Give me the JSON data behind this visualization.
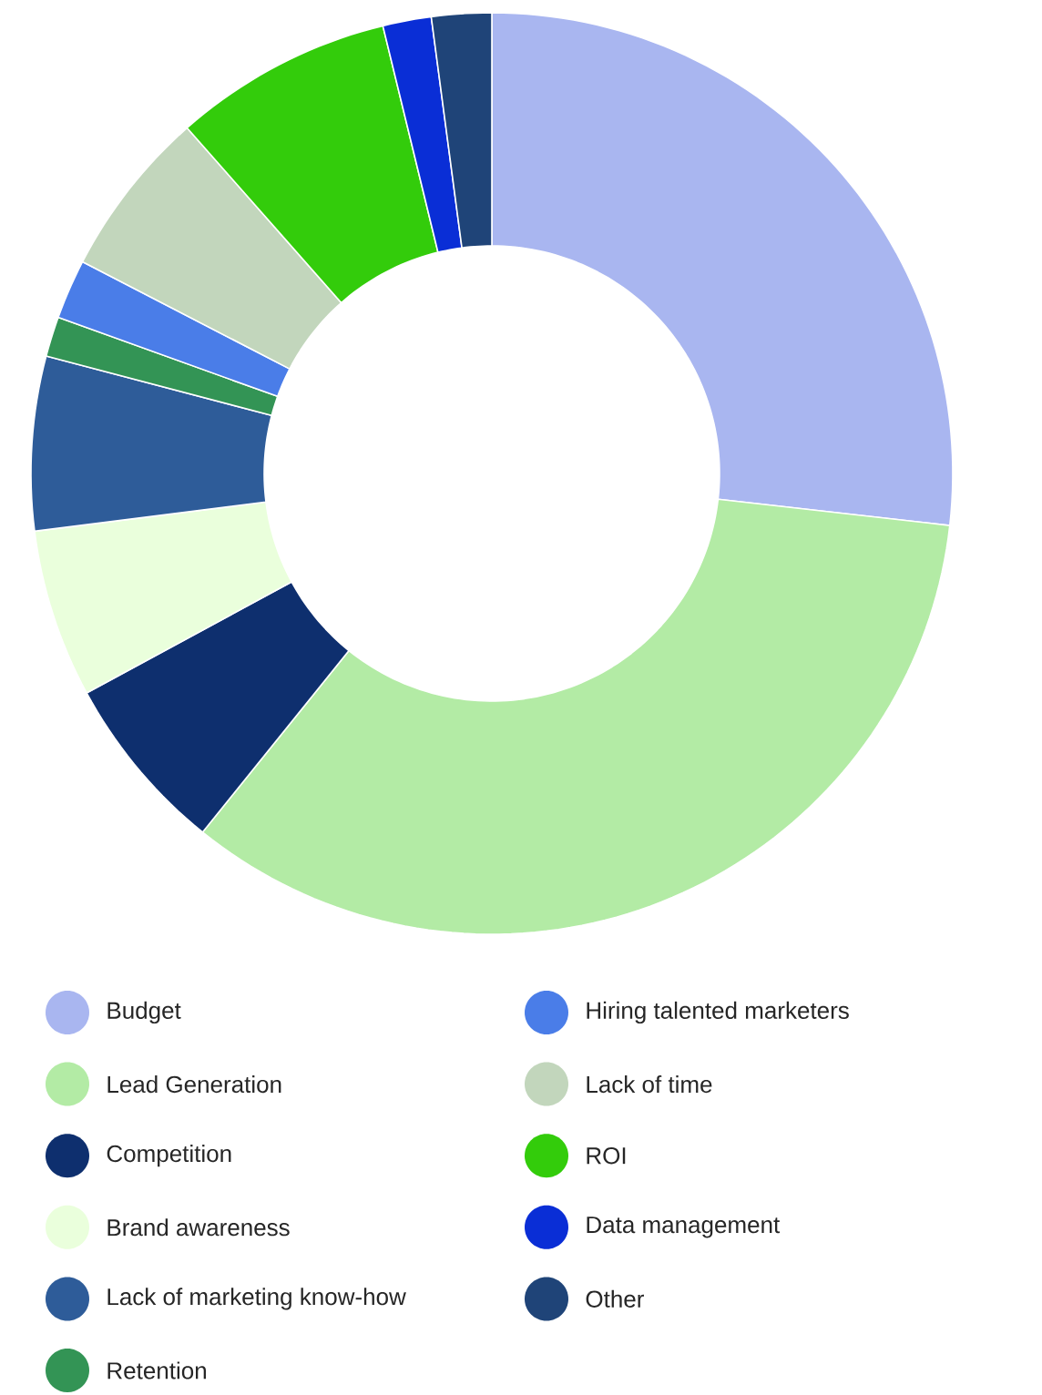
{
  "chart_data": {
    "type": "donut",
    "categories": [
      "Budget",
      "Lead Generation",
      "Competition",
      "Brand awareness",
      "Lack of marketing know-how",
      "Retention",
      "Hiring talented marketers",
      "Lack of time",
      "ROI",
      "Data management",
      "Other"
    ],
    "values": [
      26.8,
      34.0,
      6.3,
      5.9,
      6.1,
      1.4,
      2.1,
      5.9,
      7.7,
      1.7,
      2.1
    ],
    "colors": [
      "#a9b6f0",
      "#b3eba5",
      "#0e2f6e",
      "#eaffdc",
      "#2e5c99",
      "#339455",
      "#4a7de8",
      "#c2d6bc",
      "#33cc0b",
      "#0a2ed6",
      "#1f4478"
    ],
    "legend": "bottom"
  }
}
